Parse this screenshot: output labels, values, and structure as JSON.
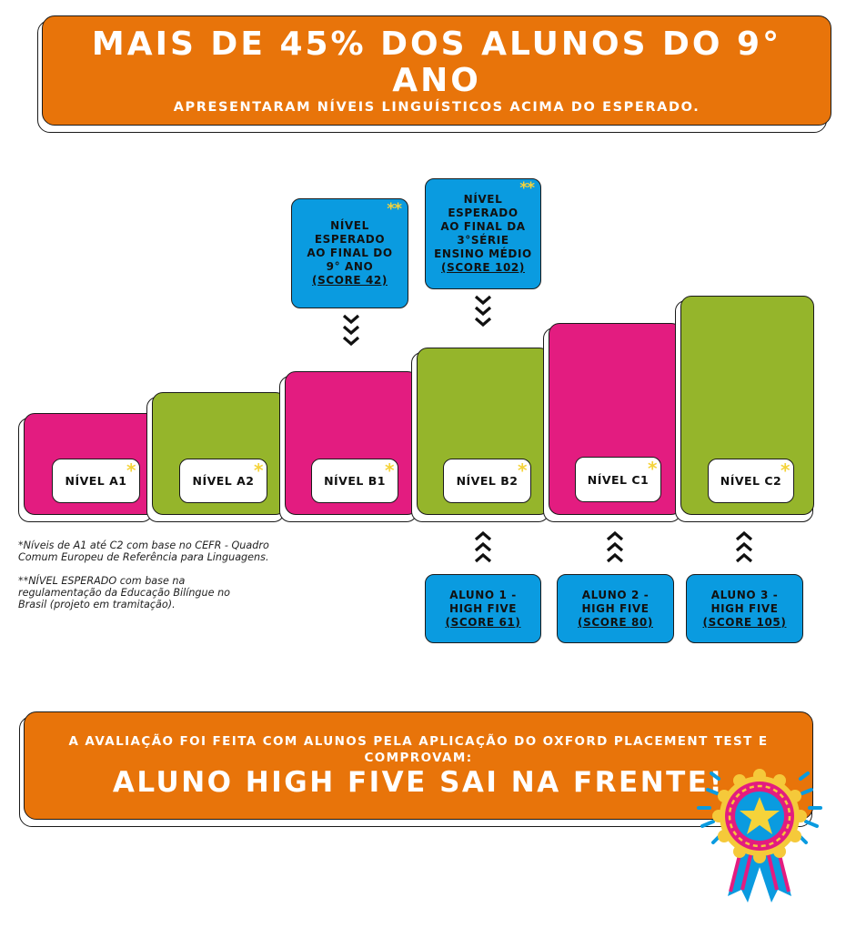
{
  "header": {
    "title": "MAIS DE 45% DOS ALUNOS DO 9° ANO",
    "subtitle": "APRESENTARAM NÍVEIS LINGUÍSTICOS ACIMA DO ESPERADO."
  },
  "levels": [
    {
      "label": "NÍVEL A1",
      "star": "*"
    },
    {
      "label": "NÍVEL A2",
      "star": "*"
    },
    {
      "label": "NÍVEL B1",
      "star": "*"
    },
    {
      "label": "NÍVEL B2",
      "star": "*"
    },
    {
      "label": "NÍVEL C1",
      "star": "*"
    },
    {
      "label": "NÍVEL C2",
      "star": "*"
    }
  ],
  "expected": [
    {
      "lines": [
        "NÍVEL",
        "ESPERADO",
        "AO FINAL DO",
        "9° ANO"
      ],
      "score": "(SCORE 42)",
      "stars": "**"
    },
    {
      "lines": [
        "NÍVEL",
        "ESPERADO",
        "AO FINAL DA",
        "3°SÉRIE",
        "ENSINO MÉDIO"
      ],
      "score": "(SCORE 102)",
      "stars": "**"
    }
  ],
  "students": [
    {
      "line1": "ALUNO 1 -",
      "line2": "HIGH FIVE",
      "score": "(SCORE 61)"
    },
    {
      "line1": "ALUNO 2 -",
      "line2": "HIGH FIVE",
      "score": "(SCORE 80)"
    },
    {
      "line1": "ALUNO 3 -",
      "line2": "HIGH FIVE",
      "score": "(SCORE 105)"
    }
  ],
  "notes": {
    "note1_l1": "*Níveis de A1 até C2 com base no CEFR - Quadro",
    "note1_l2": "Comum Europeu de Referência para Linguagens.",
    "note2_l1": "**NÍVEL ESPERADO com base na",
    "note2_l2": "regulamentação da Educação Bilíngue no",
    "note2_l3": "Brasil (projeto em tramitação)."
  },
  "footer": {
    "subtitle": "A AVALIAÇÃO FOI FEITA COM ALUNOS PELA APLICAÇÃO DO OXFORD PLACEMENT TEST E COMPROVAM:",
    "title": "ALUNO HIGH FIVE SAI NA FRENTE!"
  },
  "colors": {
    "orange": "#E8740A",
    "pink": "#E31C80",
    "green": "#95B52B",
    "blue": "#0A9BE0",
    "yellow": "#F5D33A"
  },
  "icons": {
    "badge": "award-ribbon-star-icon",
    "arrows_down": "triple-chevron-down-icon",
    "arrows_up": "triple-chevron-up-icon"
  }
}
